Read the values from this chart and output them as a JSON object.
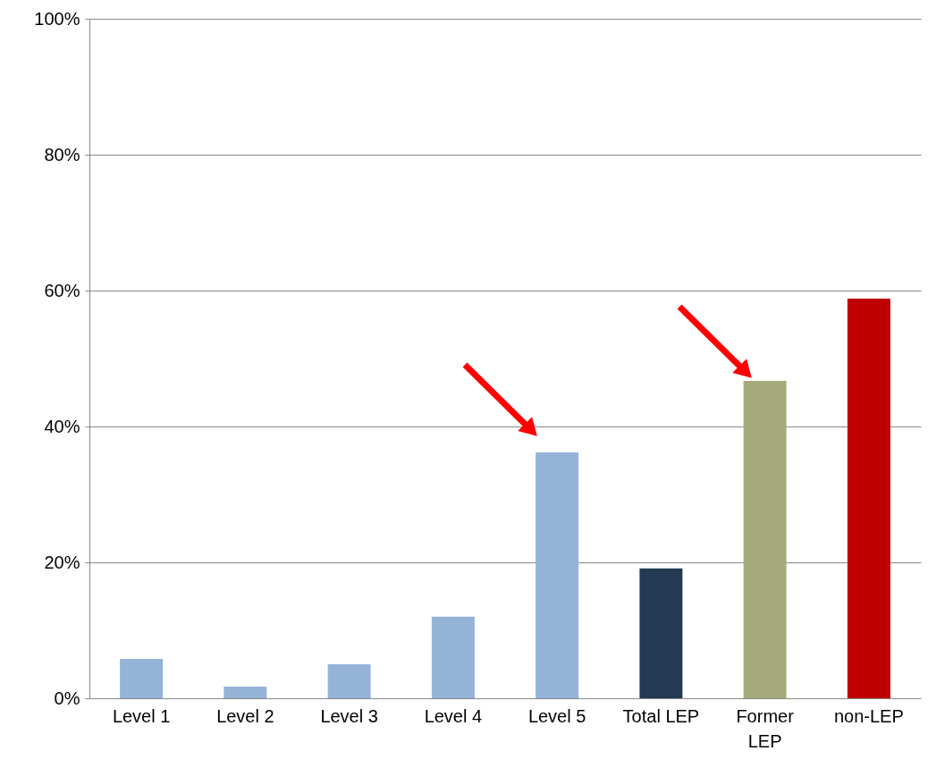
{
  "chart_data": {
    "type": "bar",
    "categories": [
      "Level 1",
      "Level 2",
      "Level 3",
      "Level 4",
      "Level 5",
      "Total LEP",
      "Former LEP",
      "non-LEP"
    ],
    "values": [
      5.8,
      1.7,
      5.0,
      12.0,
      36.2,
      19.1,
      46.7,
      58.8
    ],
    "colors": [
      "#95b3d7",
      "#95b3d7",
      "#95b3d7",
      "#95b3d7",
      "#95b3d7",
      "#243a52",
      "#a4aa7c",
      "#c00000"
    ],
    "ylim": [
      0,
      100
    ],
    "yticks": [
      {
        "value": 0,
        "label": "0%"
      },
      {
        "value": 20,
        "label": "20%"
      },
      {
        "value": 40,
        "label": "40%"
      },
      {
        "value": 60,
        "label": "60%"
      },
      {
        "value": 80,
        "label": "80%"
      },
      {
        "value": 100,
        "label": "100%"
      }
    ],
    "grid": "y"
  }
}
